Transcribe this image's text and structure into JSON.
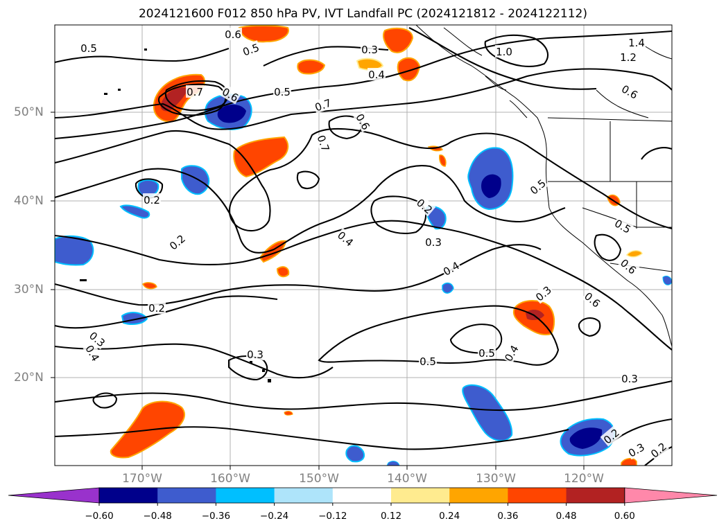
{
  "title": "2024121600 F012 850 hPa PV, IVT Landfall PC (2024121812 - 2024122112)",
  "map": {
    "lat_ticks": [
      "50°N",
      "40°N",
      "30°N",
      "20°N"
    ],
    "lon_ticks": [
      "170°W",
      "160°W",
      "150°W",
      "140°W",
      "130°W",
      "120°W"
    ],
    "gridlines": true,
    "contour_labels": [
      "0.5",
      "0.6",
      "0.5",
      "0.3",
      "0.4",
      "1.0",
      "1.4",
      "1.2",
      "0.6",
      "0.5",
      "0.6",
      "0.7",
      "0.6",
      "0.7",
      "0.7",
      "0.2",
      "0.2",
      "0.4",
      "0.3",
      "0.4",
      "0.2",
      "0.5",
      "0.5",
      "0.6",
      "0.2",
      "0.3",
      "0.4",
      "0.3",
      "0.5",
      "0.3",
      "0.6",
      "0.5",
      "0.4",
      "0.3",
      "0.2",
      "0.3",
      "0.2"
    ]
  },
  "colorbar": {
    "colors": [
      "#9932cc",
      "#00008b",
      "#3e5cce",
      "#00bfff",
      "#aee4fa",
      "#ffffff",
      "#ffeb8f",
      "#ffa500",
      "#ff4500",
      "#b22222",
      "#ff88aa"
    ],
    "labels": [
      "−0.60",
      "−0.48",
      "−0.36",
      "−0.24",
      "−0.12",
      "0.12",
      "0.24",
      "0.36",
      "0.48",
      "0.60"
    ]
  }
}
